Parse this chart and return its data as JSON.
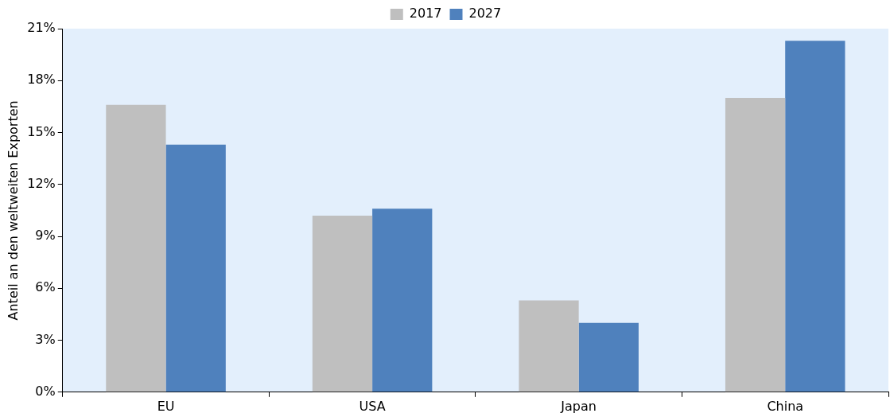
{
  "chart_data": {
    "type": "bar",
    "ylabel": "Anteil an den weltweiten Exporten",
    "categories": [
      "EU",
      "USA",
      "Japan",
      "China"
    ],
    "series": [
      {
        "name": "2017",
        "color": "#bfbfbf",
        "values": [
          16.6,
          10.2,
          5.3,
          17.0
        ]
      },
      {
        "name": "2027",
        "color": "#4f81bd",
        "values": [
          14.3,
          10.6,
          4.0,
          20.3
        ]
      }
    ],
    "ylim": [
      0,
      21
    ],
    "yticks": [
      {
        "value": 0,
        "label": "0%"
      },
      {
        "value": 3,
        "label": "3%"
      },
      {
        "value": 6,
        "label": "6%"
      },
      {
        "value": 9,
        "label": "9%"
      },
      {
        "value": 12,
        "label": "12%"
      },
      {
        "value": 15,
        "label": "15%"
      },
      {
        "value": 18,
        "label": "18%"
      },
      {
        "value": 21,
        "label": "21%"
      }
    ],
    "grid": false,
    "legend": "top"
  }
}
